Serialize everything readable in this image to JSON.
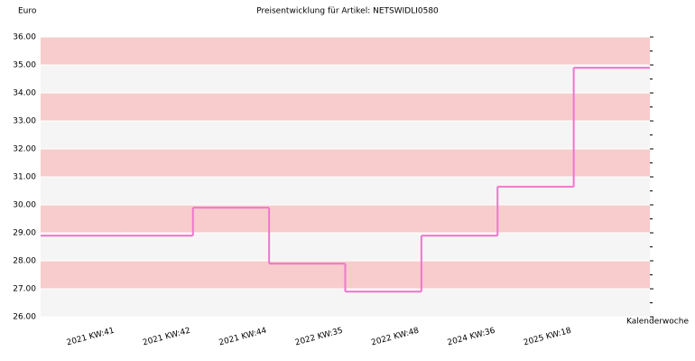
{
  "chart_data": {
    "type": "step",
    "title": "Preisentwicklung für Artikel: NETSWIDLI0580",
    "y_label": "Euro",
    "x_label": "Kalenderwoche",
    "categories": [
      null,
      "2021 KW:41",
      "2021 KW:42",
      "2021 KW:44",
      "2022 KW:35",
      "2022 KW:48",
      "2024 KW:36",
      "2025 KW:18"
    ],
    "values": [
      28.9,
      28.9,
      29.9,
      27.9,
      26.9,
      28.9,
      30.65,
      34.9
    ],
    "color": "#ee77cc",
    "ylim": [
      26,
      36
    ],
    "yticks": [
      {
        "value": 26,
        "label": "26.00"
      },
      {
        "value": 27,
        "label": "27.00"
      },
      {
        "value": 28,
        "label": "28.00"
      },
      {
        "value": 29,
        "label": "29.00"
      },
      {
        "value": 30,
        "label": "30.00"
      },
      {
        "value": 31,
        "label": "31.00"
      },
      {
        "value": 32,
        "label": "32.00"
      },
      {
        "value": 33,
        "label": "33.00"
      },
      {
        "value": 34,
        "label": "34.00"
      },
      {
        "value": 35,
        "label": "35.00"
      },
      {
        "value": 36,
        "label": "36.00"
      }
    ],
    "grid": true
  }
}
